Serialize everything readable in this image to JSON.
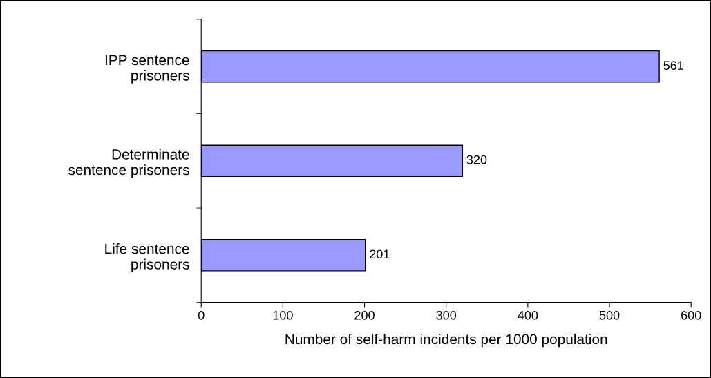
{
  "chart_data": {
    "type": "bar",
    "orientation": "horizontal",
    "categories": [
      "IPP sentence\nprisoners",
      "Determinate\nsentence prisoners",
      "Life sentence\nprisoners"
    ],
    "values": [
      561,
      320,
      201
    ],
    "color": "#9999ff",
    "xlim": [
      0,
      600
    ],
    "xticks": [
      0,
      100,
      200,
      300,
      400,
      500,
      600
    ],
    "xlabel": "Number of self-harm incidents per 1000 population",
    "data_labels": true,
    "grid": false,
    "legend": false
  }
}
